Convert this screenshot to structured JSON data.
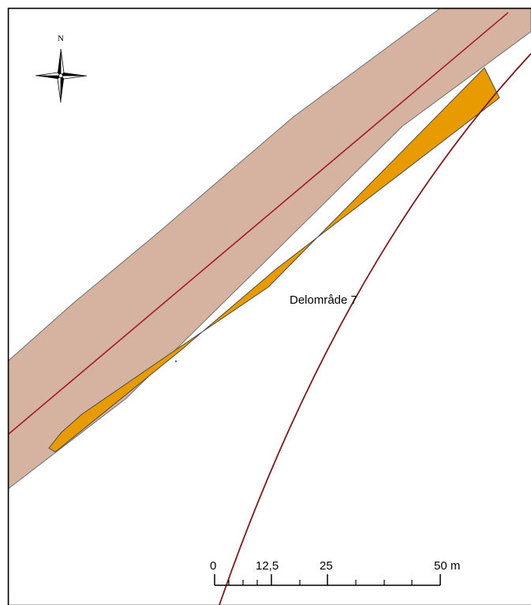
{
  "map": {
    "area_label": "Delområde 7",
    "north_label": "N",
    "scale_bar": {
      "labels": [
        "0",
        "12,5",
        "25",
        "50 m"
      ]
    },
    "colors": {
      "road_corridor": "#d6b3a1",
      "road_corridor_edge": "#6e6e6e",
      "centerline": "#a31a2a",
      "orange_area": "#e89b00",
      "orange_area_edge": "#4a4a4a",
      "rail_line": "#7a1c1c",
      "frame": "#000000"
    },
    "icons": [
      "compass-rose-icon"
    ]
  }
}
